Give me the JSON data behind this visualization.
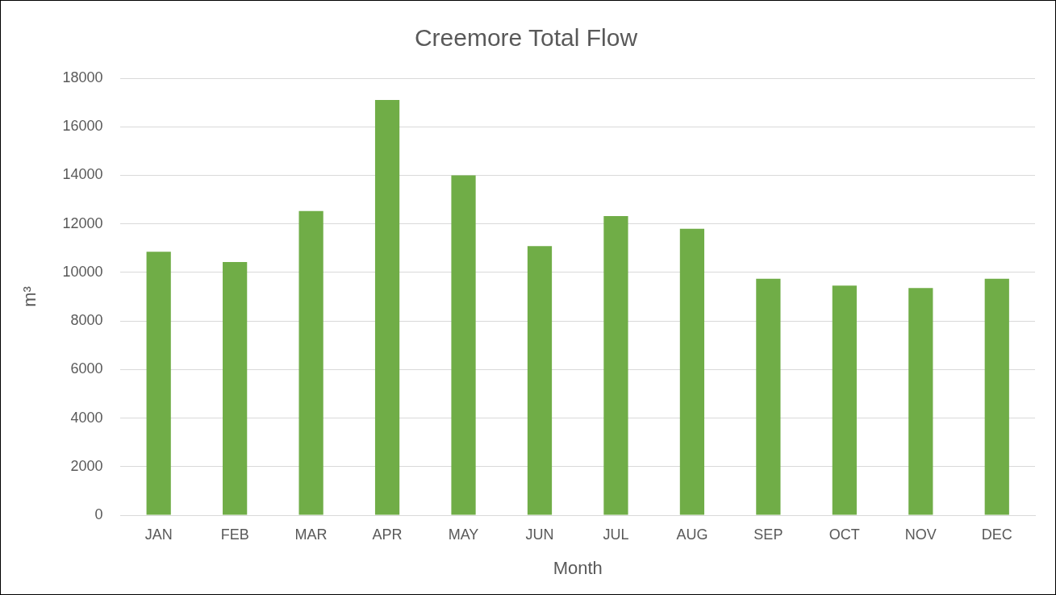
{
  "chart_data": {
    "type": "bar",
    "title": "Creemore Total Flow",
    "xlabel": "Month",
    "ylabel": "m³",
    "categories": [
      "JAN",
      "FEB",
      "MAR",
      "APR",
      "MAY",
      "JUN",
      "JUL",
      "AUG",
      "SEP",
      "OCT",
      "NOV",
      "DEC"
    ],
    "values": [
      10850,
      10430,
      12530,
      17100,
      14000,
      11080,
      12320,
      11800,
      9740,
      9460,
      9360,
      9740
    ],
    "color": "#70ad47",
    "ylim": [
      0,
      18000
    ],
    "yticks": [
      0,
      2000,
      4000,
      6000,
      8000,
      10000,
      12000,
      14000,
      16000,
      18000
    ],
    "grid": "y",
    "legend": false
  }
}
